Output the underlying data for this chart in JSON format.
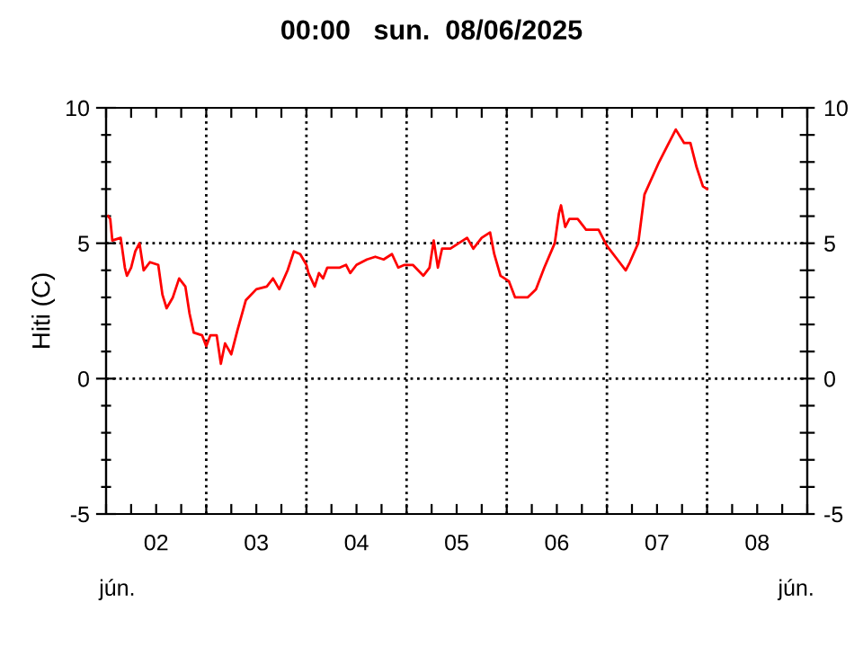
{
  "chart_data": {
    "type": "line",
    "title": "00:00   sun.  08/06/2025",
    "ylabel": "Hiti (C)",
    "annotations": [
      "jún.",
      "jún."
    ],
    "series": [
      {
        "color": "#ff0000",
        "x": [
          "2025-06-02T00:30",
          "2025-06-02T01:00",
          "2025-06-02T01:30",
          "2025-06-02T03:30",
          "2025-06-02T04:30",
          "2025-06-02T05:00",
          "2025-06-02T06:00",
          "2025-06-02T07:00",
          "2025-06-02T08:00",
          "2025-06-02T09:00",
          "2025-06-02T10:30",
          "2025-06-02T12:30",
          "2025-06-02T13:30",
          "2025-06-02T14:30",
          "2025-06-02T16:00",
          "2025-06-02T17:30",
          "2025-06-02T19:00",
          "2025-06-02T20:00",
          "2025-06-02T21:00",
          "2025-06-02T23:00",
          "2025-06-03T00:00",
          "2025-06-03T01:00",
          "2025-06-03T02:30",
          "2025-06-03T03:30",
          "2025-06-03T04:30",
          "2025-06-03T06:00",
          "2025-06-03T07:30",
          "2025-06-03T09:30",
          "2025-06-03T12:00",
          "2025-06-03T14:30",
          "2025-06-03T16:00",
          "2025-06-03T17:30",
          "2025-06-03T19:30",
          "2025-06-03T21:00",
          "2025-06-03T22:30",
          "2025-06-04T00:00",
          "2025-06-04T00:30",
          "2025-06-04T02:00",
          "2025-06-04T03:00",
          "2025-06-04T04:00",
          "2025-06-04T05:00",
          "2025-06-04T08:00",
          "2025-06-04T09:30",
          "2025-06-04T10:30",
          "2025-06-04T12:00",
          "2025-06-04T14:30",
          "2025-06-04T16:30",
          "2025-06-04T18:30",
          "2025-06-04T20:30",
          "2025-06-04T22:00",
          "2025-06-04T23:30",
          "2025-06-05T01:30",
          "2025-06-05T04:00",
          "2025-06-05T05:30",
          "2025-06-05T06:30",
          "2025-06-05T07:30",
          "2025-06-05T08:30",
          "2025-06-05T10:30",
          "2025-06-05T12:30",
          "2025-06-05T14:30",
          "2025-06-05T16:00",
          "2025-06-05T18:00",
          "2025-06-05T20:00",
          "2025-06-05T21:00",
          "2025-06-05T22:30",
          "2025-06-06T00:30",
          "2025-06-06T02:00",
          "2025-06-06T05:00",
          "2025-06-06T07:00",
          "2025-06-06T09:00",
          "2025-06-06T11:30",
          "2025-06-06T12:30",
          "2025-06-06T13:00",
          "2025-06-06T14:00",
          "2025-06-06T15:00",
          "2025-06-06T17:00",
          "2025-06-06T19:00",
          "2025-06-06T22:00",
          "2025-06-07T00:00",
          "2025-06-07T03:00",
          "2025-06-07T04:30",
          "2025-06-07T05:30",
          "2025-06-07T07:30",
          "2025-06-07T09:00",
          "2025-06-07T12:30",
          "2025-06-07T14:30",
          "2025-06-07T16:30",
          "2025-06-07T18:30",
          "2025-06-07T20:00",
          "2025-06-07T21:30",
          "2025-06-07T23:00",
          "2025-06-08T00:00"
        ],
        "values": [
          6.0,
          5.9,
          5.1,
          5.2,
          4.1,
          3.8,
          4.1,
          4.7,
          5.0,
          4.0,
          4.3,
          4.2,
          3.1,
          2.6,
          3.0,
          3.7,
          3.4,
          2.4,
          1.7,
          1.6,
          1.2,
          1.6,
          1.6,
          0.55,
          1.3,
          0.9,
          1.8,
          2.9,
          3.3,
          3.4,
          3.7,
          3.3,
          4.0,
          4.7,
          4.6,
          4.2,
          3.9,
          3.4,
          3.9,
          3.7,
          4.1,
          4.1,
          4.2,
          3.9,
          4.2,
          4.4,
          4.5,
          4.4,
          4.6,
          4.1,
          4.2,
          4.2,
          3.8,
          4.1,
          5.1,
          4.1,
          4.8,
          4.8,
          5.0,
          5.2,
          4.8,
          5.2,
          5.4,
          4.6,
          3.8,
          3.6,
          3.0,
          3.0,
          3.3,
          4.1,
          5.0,
          6.1,
          6.4,
          5.6,
          5.9,
          5.9,
          5.5,
          5.5,
          4.9,
          4.3,
          4.0,
          4.3,
          5.0,
          6.8,
          8.0,
          8.6,
          9.2,
          8.7,
          8.7,
          7.8,
          7.1,
          7.0
        ]
      }
    ],
    "xlim": [
      "2025-06-02T00:00",
      "2025-06-09T00:00"
    ],
    "xticks": [
      {
        "value": "2025-06-02T00:00",
        "label": null
      },
      {
        "value": "2025-06-02T06:00",
        "label": null
      },
      {
        "value": "2025-06-02T12:00",
        "label": "02"
      },
      {
        "value": "2025-06-02T18:00",
        "label": null
      },
      {
        "value": "2025-06-03T00:00",
        "label": null
      },
      {
        "value": "2025-06-03T06:00",
        "label": null
      },
      {
        "value": "2025-06-03T12:00",
        "label": "03"
      },
      {
        "value": "2025-06-03T18:00",
        "label": null
      },
      {
        "value": "2025-06-04T00:00",
        "label": null
      },
      {
        "value": "2025-06-04T06:00",
        "label": null
      },
      {
        "value": "2025-06-04T12:00",
        "label": "04"
      },
      {
        "value": "2025-06-04T18:00",
        "label": null
      },
      {
        "value": "2025-06-05T00:00",
        "label": null
      },
      {
        "value": "2025-06-05T06:00",
        "label": null
      },
      {
        "value": "2025-06-05T12:00",
        "label": "05"
      },
      {
        "value": "2025-06-05T18:00",
        "label": null
      },
      {
        "value": "2025-06-06T00:00",
        "label": null
      },
      {
        "value": "2025-06-06T06:00",
        "label": null
      },
      {
        "value": "2025-06-06T12:00",
        "label": "06"
      },
      {
        "value": "2025-06-06T18:00",
        "label": null
      },
      {
        "value": "2025-06-07T00:00",
        "label": null
      },
      {
        "value": "2025-06-07T06:00",
        "label": null
      },
      {
        "value": "2025-06-07T12:00",
        "label": "07"
      },
      {
        "value": "2025-06-07T18:00",
        "label": null
      },
      {
        "value": "2025-06-08T00:00",
        "label": null
      },
      {
        "value": "2025-06-08T06:00",
        "label": null
      },
      {
        "value": "2025-06-08T12:00",
        "label": "08"
      },
      {
        "value": "2025-06-08T18:00",
        "label": null
      },
      {
        "value": "2025-06-09T00:00",
        "label": null
      }
    ],
    "ylim": [
      -5,
      10
    ],
    "yticks": [
      -5,
      {
        "value": -4,
        "label": null
      },
      {
        "value": -3,
        "label": null
      },
      {
        "value": -2,
        "label": null
      },
      {
        "value": -1,
        "label": null
      },
      0,
      {
        "value": 1,
        "label": null
      },
      {
        "value": 2,
        "label": null
      },
      {
        "value": 3,
        "label": null
      },
      {
        "value": 4,
        "label": null
      },
      5,
      {
        "value": 6,
        "label": null
      },
      {
        "value": 7,
        "label": null
      },
      {
        "value": 8,
        "label": null
      },
      {
        "value": 9,
        "label": null
      },
      10
    ],
    "y2lim": [
      -5,
      10
    ],
    "y2ticks": [
      -5,
      {
        "value": -4,
        "label": null
      },
      {
        "value": -3,
        "label": null
      },
      {
        "value": -2,
        "label": null
      },
      {
        "value": -1,
        "label": null
      },
      0,
      {
        "value": 1,
        "label": null
      },
      {
        "value": 2,
        "label": null
      },
      {
        "value": 3,
        "label": null
      },
      {
        "value": 4,
        "label": null
      },
      5,
      {
        "value": 6,
        "label": null
      },
      {
        "value": 7,
        "label": null
      },
      {
        "value": 8,
        "label": null
      },
      {
        "value": 9,
        "label": null
      },
      10
    ],
    "ref_lines": [
      {
        "axis": "x",
        "value": "2025-06-03T00:00",
        "color": "#000000",
        "line_style": "dotted"
      },
      {
        "axis": "x",
        "value": "2025-06-04T00:00",
        "color": "#000000",
        "line_style": "dotted"
      },
      {
        "axis": "x",
        "value": "2025-06-05T00:00",
        "color": "#000000",
        "line_style": "dotted"
      },
      {
        "axis": "x",
        "value": "2025-06-06T00:00",
        "color": "#000000",
        "line_style": "dotted"
      },
      {
        "axis": "x",
        "value": "2025-06-07T00:00",
        "color": "#000000",
        "line_style": "dotted"
      },
      {
        "axis": "x",
        "value": "2025-06-08T00:00",
        "color": "#000000",
        "line_style": "dotted"
      },
      {
        "axis": "y",
        "value": 0,
        "color": "#000000",
        "line_style": "dotted"
      },
      {
        "axis": "y",
        "value": 5,
        "color": "#000000",
        "line_style": "dotted"
      }
    ],
    "line_style": "solid",
    "marker": "none",
    "grid": false
  }
}
